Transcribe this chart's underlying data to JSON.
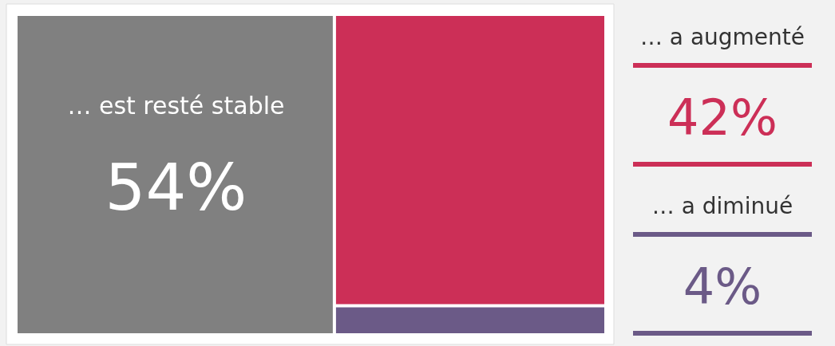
{
  "chart_data": {
    "type": "other",
    "categories": [
      "… est resté stable",
      "… a augmenté",
      "… a diminué"
    ],
    "values": [
      54,
      42,
      4
    ],
    "value_labels": [
      "54%",
      "42%",
      "4%"
    ],
    "colors": [
      "#808080",
      "#cc2f57",
      "#6b5a87"
    ]
  }
}
